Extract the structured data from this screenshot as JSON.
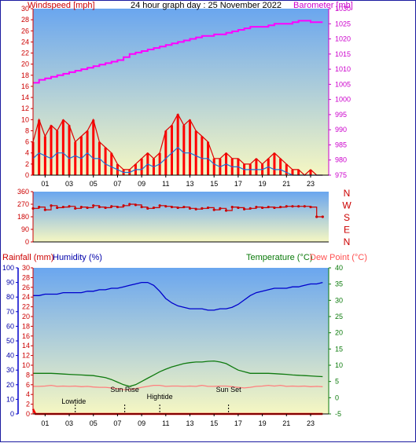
{
  "colors": {
    "wind": "#e00000",
    "gust": "#ff0000",
    "avgwind": "#1f6fd6",
    "baro": "#ff00ff",
    "dir": "#cc0000",
    "humidity": "#0000cc",
    "temp": "#0f7a0f",
    "dew": "#ff7f7f",
    "rain": "#ff0000",
    "label_wind": "#cc0000",
    "label_baro": "#cc00cc",
    "label_temp": "#0a7a0a",
    "label_dew": "#ff5050",
    "label_hum": "#0000aa",
    "label_rain": "#cc0000",
    "sky_top": "#6aa6ef",
    "sky_bottom": "#f6f7c2"
  },
  "chart_data": [
    {
      "type": "line",
      "title": "24 hour graph day : 25 November 2022",
      "left_label": "Windspeed [mph]",
      "right_label": "Barometer [mb]",
      "x_ticks": [
        "01",
        "03",
        "05",
        "07",
        "09",
        "11",
        "13",
        "15",
        "17",
        "19",
        "21",
        "23"
      ],
      "y_left_ticks": [
        "0",
        "2",
        "4",
        "6",
        "8",
        "10",
        "12",
        "14",
        "16",
        "18",
        "20",
        "22",
        "24",
        "26",
        "28",
        "30"
      ],
      "y_right_ticks": [
        "975",
        "980",
        "985",
        "990",
        "995",
        "1000",
        "1005",
        "1010",
        "1015",
        "1020",
        "1025",
        "1030"
      ],
      "ylim_left": [
        0,
        30
      ],
      "ylim_right": [
        975,
        1030
      ],
      "xlim": [
        0,
        24.5
      ],
      "series": [
        {
          "key": "gust",
          "x": [
            0.0,
            0.5,
            1.0,
            1.5,
            2.0,
            2.5,
            3.0,
            3.5,
            4.0,
            4.5,
            5.0,
            5.5,
            6.0,
            6.5,
            7.0,
            7.5,
            8.0,
            8.5,
            9.0,
            9.5,
            10.0,
            10.5,
            11.0,
            11.5,
            12.0,
            12.5,
            13.0,
            13.5,
            14.0,
            14.5,
            15.0,
            15.5,
            16.0,
            16.5,
            17.0,
            17.5,
            18.0,
            18.5,
            19.0,
            19.5,
            20.0,
            20.5,
            21.0,
            21.5,
            22.0,
            22.5,
            23.0,
            23.5,
            24.0
          ],
          "y": [
            6,
            10,
            7,
            9,
            8,
            10,
            9,
            6,
            7,
            8,
            10,
            6,
            5,
            4,
            2,
            1,
            1,
            2,
            3,
            4,
            3,
            4,
            8,
            9,
            11,
            9,
            10,
            8,
            7,
            6,
            3,
            3,
            4,
            3,
            3,
            2,
            2,
            3,
            2,
            3,
            4,
            3,
            2,
            1,
            1,
            0,
            1,
            0,
            0
          ]
        },
        {
          "key": "avgwind",
          "x": [
            0.0,
            0.5,
            1.0,
            1.5,
            2.0,
            2.5,
            3.0,
            3.5,
            4.0,
            4.5,
            5.0,
            5.5,
            6.0,
            6.5,
            7.0,
            7.5,
            8.0,
            8.5,
            9.0,
            9.5,
            10.0,
            10.5,
            11.0,
            11.5,
            12.0,
            12.5,
            13.0,
            13.5,
            14.0,
            14.5,
            15.0,
            15.5,
            16.0,
            16.5,
            17.0,
            17.5,
            18.0,
            18.5,
            19.0,
            19.5,
            20.0,
            20.5,
            21.0,
            21.5,
            22.0,
            22.5,
            23.0,
            23.5,
            24.0
          ],
          "y": [
            3,
            4,
            3.5,
            3,
            4,
            4,
            3,
            3.5,
            3,
            4,
            3,
            3,
            2,
            1.5,
            1,
            0.5,
            0.5,
            1,
            1,
            2,
            1.5,
            2,
            3,
            4,
            5,
            4,
            4,
            3.5,
            3,
            3,
            2,
            1.5,
            2,
            1.5,
            1.5,
            1,
            1,
            1,
            1,
            1.5,
            1,
            1,
            0.5,
            0,
            0,
            0,
            0,
            0,
            0
          ]
        },
        {
          "key": "baro",
          "x": [
            0.0,
            0.5,
            1.0,
            1.5,
            2.0,
            2.5,
            3.0,
            3.5,
            4.0,
            4.5,
            5.0,
            5.5,
            6.0,
            6.5,
            7.0,
            7.5,
            8.0,
            8.5,
            9.0,
            9.5,
            10.0,
            10.5,
            11.0,
            11.5,
            12.0,
            12.5,
            13.0,
            13.5,
            14.0,
            14.5,
            15.0,
            15.5,
            16.0,
            16.5,
            17.0,
            17.5,
            18.0,
            18.5,
            19.0,
            19.5,
            20.0,
            20.5,
            21.0,
            21.5,
            22.0,
            22.5,
            23.0,
            23.5,
            24.0
          ],
          "y": [
            1005.5,
            1006.5,
            1007,
            1007.5,
            1008,
            1008.5,
            1009,
            1009.5,
            1010,
            1010.5,
            1011,
            1011.5,
            1012,
            1012.5,
            1013,
            1014,
            1015,
            1015.5,
            1016,
            1016.5,
            1017,
            1017.5,
            1018,
            1018.5,
            1019,
            1019.5,
            1020,
            1020.5,
            1021,
            1021,
            1021.5,
            1021.5,
            1022,
            1022.5,
            1023,
            1023.5,
            1024,
            1024,
            1024,
            1024.5,
            1025,
            1025,
            1025,
            1025.5,
            1026,
            1026,
            1025.5,
            1025.5,
            1025.5
          ]
        }
      ]
    },
    {
      "type": "scatter",
      "right_labels": [
        "N",
        "W",
        "S",
        "E",
        "N"
      ],
      "y_ticks": [
        "0",
        "90",
        "180",
        "270",
        "360"
      ],
      "ylim": [
        0,
        360
      ],
      "xlim": [
        0,
        24.5
      ],
      "x": [
        0.0,
        0.5,
        1.0,
        1.5,
        2.0,
        2.5,
        3.0,
        3.5,
        4.0,
        4.5,
        5.0,
        5.5,
        6.0,
        6.5,
        7.0,
        7.5,
        8.0,
        8.5,
        9.0,
        9.5,
        10.0,
        10.5,
        11.0,
        11.5,
        12.0,
        12.5,
        13.0,
        13.5,
        14.0,
        14.5,
        15.0,
        15.5,
        16.0,
        16.5,
        17.0,
        17.5,
        18.0,
        18.5,
        19.0,
        19.5,
        20.0,
        20.5,
        21.0,
        21.5,
        22.0,
        22.5,
        23.0,
        23.5,
        24.0
      ],
      "values": [
        240,
        250,
        230,
        260,
        245,
        250,
        255,
        240,
        250,
        245,
        260,
        250,
        245,
        255,
        250,
        260,
        270,
        265,
        250,
        240,
        245,
        260,
        255,
        250,
        245,
        250,
        240,
        235,
        240,
        245,
        230,
        240,
        225,
        250,
        245,
        235,
        240,
        250,
        245,
        250,
        245,
        250,
        255,
        255,
        255,
        255,
        250,
        180,
        180
      ]
    },
    {
      "type": "line",
      "left_label_1": "Rainfall (mm)",
      "left_label_2": "Humidity (%)",
      "right_label_1": "Temperature (°C)",
      "right_label_2": "Dew Point (°C)",
      "x_ticks": [
        "01",
        "03",
        "05",
        "07",
        "09",
        "11",
        "13",
        "15",
        "17",
        "19",
        "21",
        "23"
      ],
      "y_hum_ticks": [
        "0",
        "10",
        "20",
        "30",
        "40",
        "50",
        "60",
        "70",
        "80",
        "90",
        "100"
      ],
      "y_rain_ticks": [
        "0",
        "2",
        "4",
        "6",
        "8",
        "10",
        "12",
        "14",
        "16",
        "18",
        "20",
        "22",
        "24",
        "26",
        "28",
        "30"
      ],
      "y_temp_ticks": [
        "-5",
        "0",
        "5",
        "10",
        "15",
        "20",
        "25",
        "30",
        "35",
        "40"
      ],
      "ylim_hum": [
        0,
        100
      ],
      "ylim_temp": [
        -5,
        40
      ],
      "xlim": [
        0,
        24.5
      ],
      "annotations": [
        {
          "label": "Lowtide",
          "x": 3.5
        },
        {
          "label": "Sun Rise",
          "x": 7.6
        },
        {
          "label": "Hightide",
          "x": 10.5
        },
        {
          "label": "Sun Set",
          "x": 16.2
        }
      ],
      "series": [
        {
          "key": "humidity",
          "x": [
            0.0,
            0.5,
            1.0,
            1.5,
            2.0,
            2.5,
            3.0,
            3.5,
            4.0,
            4.5,
            5.0,
            5.5,
            6.0,
            6.5,
            7.0,
            7.5,
            8.0,
            8.5,
            9.0,
            9.5,
            10.0,
            10.5,
            11.0,
            11.5,
            12.0,
            12.5,
            13.0,
            13.5,
            14.0,
            14.5,
            15.0,
            15.5,
            16.0,
            16.5,
            17.0,
            17.5,
            18.0,
            18.5,
            19.0,
            19.5,
            20.0,
            20.5,
            21.0,
            21.5,
            22.0,
            22.5,
            23.0,
            23.5,
            24.0
          ],
          "y": [
            81,
            81,
            82,
            82,
            82,
            83,
            83,
            83,
            83,
            84,
            84,
            85,
            85,
            86,
            86,
            87,
            88,
            89,
            90,
            90,
            88,
            84,
            79,
            76,
            74,
            73,
            72,
            72,
            72,
            71,
            71,
            72,
            72,
            73,
            75,
            78,
            81,
            83,
            84,
            85,
            86,
            86,
            86,
            87,
            87,
            88,
            89,
            89,
            90
          ]
        },
        {
          "key": "temp",
          "x": [
            0.0,
            0.5,
            1.0,
            1.5,
            2.0,
            2.5,
            3.0,
            3.5,
            4.0,
            4.5,
            5.0,
            5.5,
            6.0,
            6.5,
            7.0,
            7.5,
            8.0,
            8.5,
            9.0,
            9.5,
            10.0,
            10.5,
            11.0,
            11.5,
            12.0,
            12.5,
            13.0,
            13.5,
            14.0,
            14.5,
            15.0,
            15.5,
            16.0,
            16.5,
            17.0,
            17.5,
            18.0,
            18.5,
            19.0,
            19.5,
            20.0,
            20.5,
            21.0,
            21.5,
            22.0,
            22.5,
            23.0,
            23.5,
            24.0
          ],
          "y": [
            7.5,
            7.5,
            7.5,
            7.5,
            7.4,
            7.3,
            7.2,
            7.1,
            7.0,
            6.9,
            6.8,
            6.5,
            6.2,
            5.6,
            4.8,
            4.0,
            3.5,
            4.0,
            5.0,
            6.0,
            7.0,
            8.0,
            8.8,
            9.5,
            10.0,
            10.5,
            10.8,
            11.0,
            11.0,
            11.2,
            11.3,
            11.0,
            10.5,
            9.5,
            8.5,
            8.0,
            7.5,
            7.5,
            7.5,
            7.5,
            7.4,
            7.3,
            7.2,
            7.0,
            6.9,
            6.8,
            6.7,
            6.6,
            6.5
          ]
        },
        {
          "key": "dew",
          "x": [
            0.0,
            0.5,
            1.0,
            1.5,
            2.0,
            2.5,
            3.0,
            3.5,
            4.0,
            4.5,
            5.0,
            5.5,
            6.0,
            6.5,
            7.0,
            7.5,
            8.0,
            8.5,
            9.0,
            9.5,
            10.0,
            10.5,
            11.0,
            11.5,
            12.0,
            12.5,
            13.0,
            13.5,
            14.0,
            14.5,
            15.0,
            15.5,
            16.0,
            16.5,
            17.0,
            17.5,
            18.0,
            18.5,
            19.0,
            19.5,
            20.0,
            20.5,
            21.0,
            21.5,
            22.0,
            22.5,
            23.0,
            23.5,
            24.0
          ],
          "y": [
            3.5,
            3.5,
            3.6,
            3.8,
            3.5,
            3.6,
            3.5,
            3.6,
            3.4,
            3.5,
            3.3,
            3.2,
            3.2,
            3.0,
            2.8,
            2.5,
            2.5,
            2.8,
            3.2,
            3.5,
            3.8,
            3.8,
            3.5,
            3.6,
            3.6,
            3.5,
            3.6,
            3.5,
            3.8,
            3.5,
            3.5,
            3.6,
            3.6,
            3.4,
            3.2,
            3.0,
            3.2,
            3.5,
            3.6,
            3.8,
            3.6,
            3.8,
            3.5,
            3.6,
            3.5,
            3.6,
            3.4,
            3.5,
            3.4
          ]
        },
        {
          "key": "rain",
          "x": [
            0.0,
            0.2,
            24.0
          ],
          "y": [
            1,
            0,
            0
          ]
        }
      ]
    }
  ]
}
